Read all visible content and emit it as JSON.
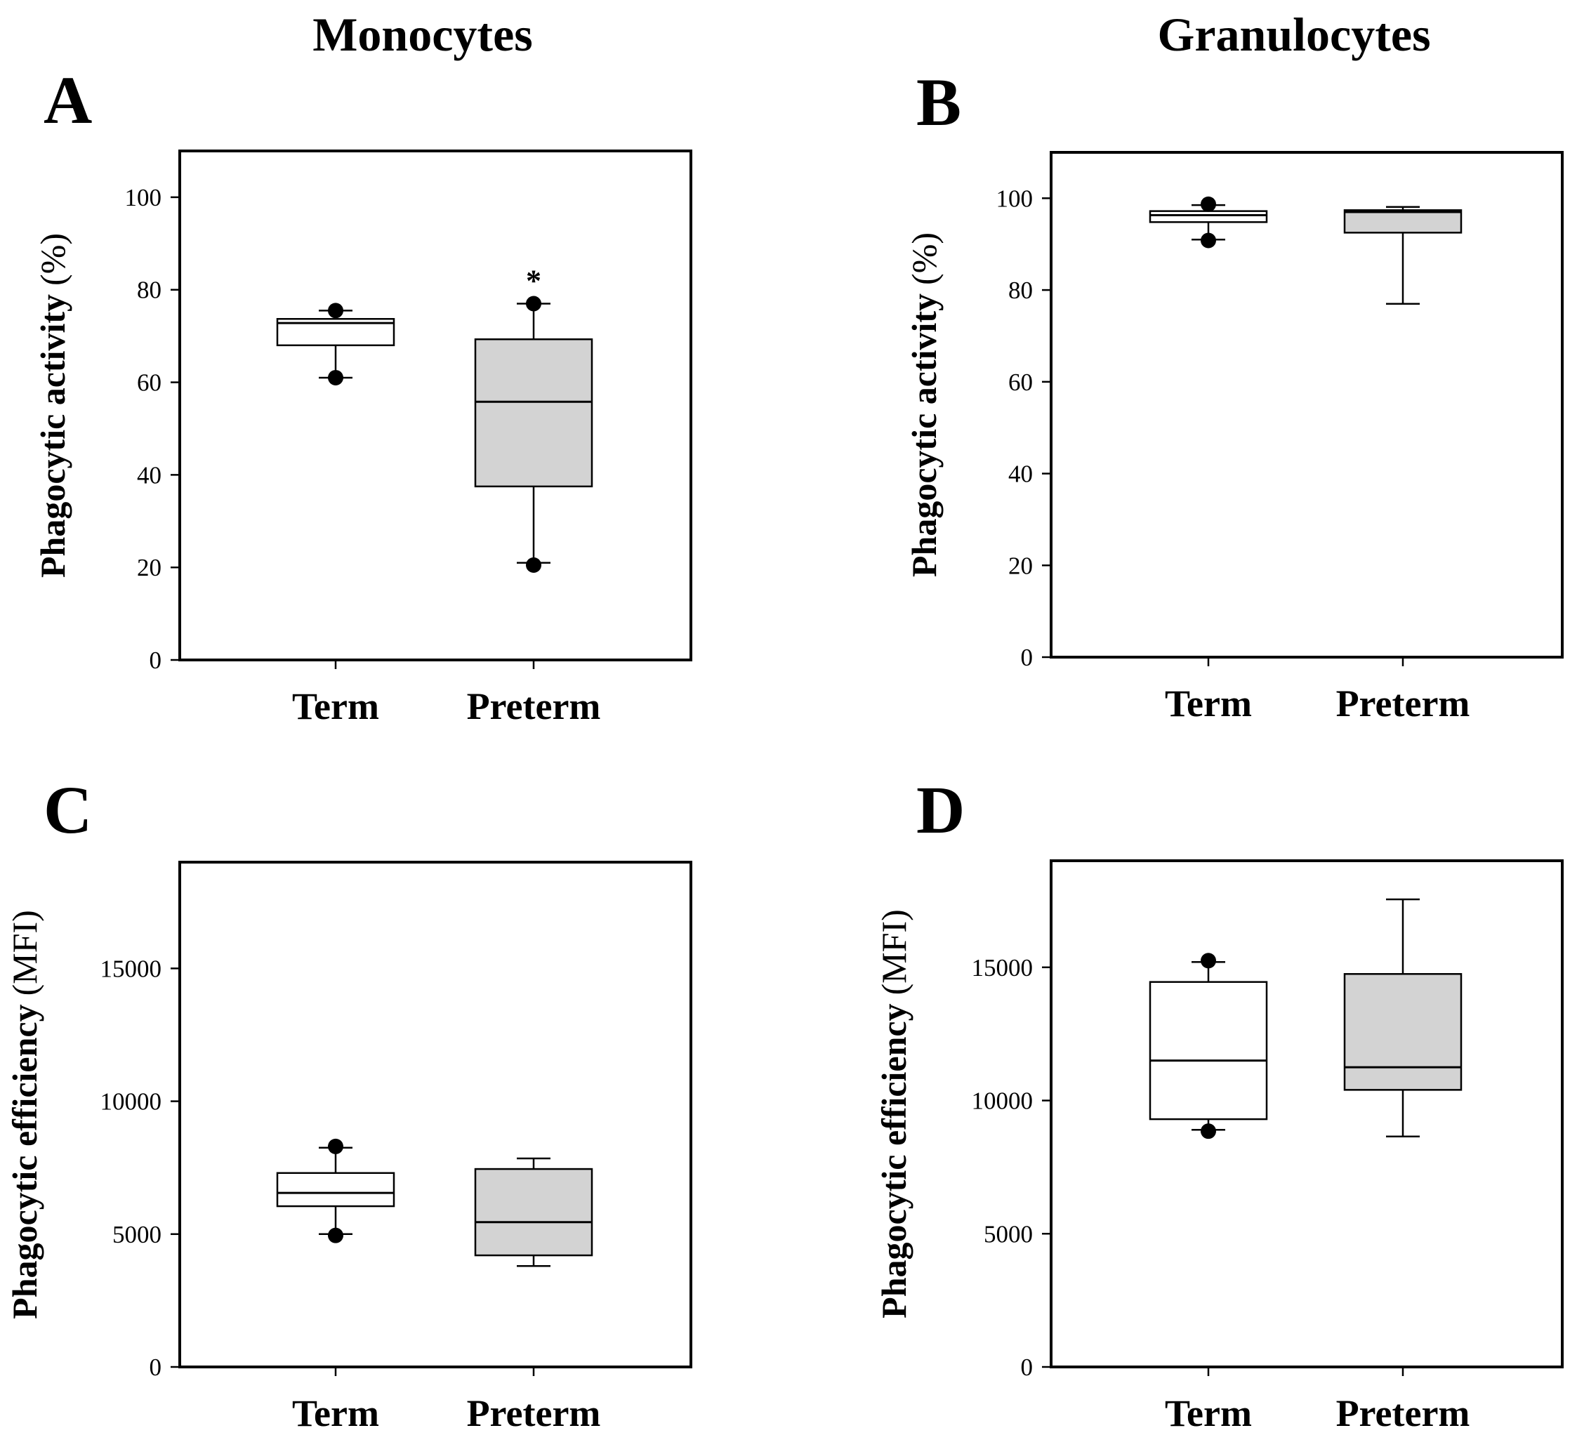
{
  "column_titles": {
    "left": "Monocytes",
    "right": "Granulocytes"
  },
  "colors": {
    "term_fill": "#ffffff",
    "preterm_fill": "#d3d3d3",
    "line": "#000000"
  },
  "chart_data": [
    {
      "panel": "A",
      "type": "box",
      "ylabel_main": "Phagocytic activity",
      "ylabel_unit": "(%)",
      "ylim": [
        0,
        110
      ],
      "yticks": [
        0,
        20,
        40,
        60,
        80,
        100
      ],
      "tick_labels": [
        "0",
        "20",
        "40",
        "60",
        "80",
        "100"
      ],
      "categories": [
        "Term",
        "Preterm"
      ],
      "series": [
        {
          "name": "Term",
          "whisker_low": 61,
          "q1": 68,
          "median": 72.8,
          "q3": 73.7,
          "whisker_high": 75.5,
          "outliers": [
            61,
            75.5
          ]
        },
        {
          "name": "Preterm",
          "whisker_low": 21,
          "q1": 37.5,
          "median": 55.8,
          "q3": 69.3,
          "whisker_high": 77,
          "outliers": [
            20.5,
            77
          ],
          "annotation": "*"
        }
      ]
    },
    {
      "panel": "B",
      "type": "box",
      "ylabel_main": "Phagocytic activity",
      "ylabel_unit": "(%)",
      "ylim": [
        0,
        110
      ],
      "yticks": [
        0,
        20,
        40,
        60,
        80,
        100
      ],
      "tick_labels": [
        "0",
        "20",
        "40",
        "60",
        "80",
        "100"
      ],
      "categories": [
        "Term",
        "Preterm"
      ],
      "series": [
        {
          "name": "Term",
          "whisker_low": 91,
          "q1": 94.8,
          "median": 96.3,
          "q3": 97.2,
          "whisker_high": 98.5,
          "outliers": [
            90.8,
            98.7
          ]
        },
        {
          "name": "Preterm",
          "whisker_low": 77,
          "q1": 92.5,
          "median": 97,
          "q3": 97.4,
          "whisker_high": 98.1,
          "outliers": []
        }
      ]
    },
    {
      "panel": "C",
      "type": "box",
      "ylabel_main": "Phagocytic efficiency",
      "ylabel_unit": "(MFI)",
      "ylim": [
        0,
        19000
      ],
      "yticks": [
        0,
        5000,
        10000,
        15000
      ],
      "tick_labels": [
        "0",
        "5000",
        "10000",
        "15000"
      ],
      "categories": [
        "Term",
        "Preterm"
      ],
      "series": [
        {
          "name": "Term",
          "whisker_low": 5000,
          "q1": 6050,
          "median": 6550,
          "q3": 7300,
          "whisker_high": 8250,
          "outliers": [
            4950,
            8300
          ]
        },
        {
          "name": "Preterm",
          "whisker_low": 3800,
          "q1": 4200,
          "median": 5450,
          "q3": 7450,
          "whisker_high": 7850,
          "outliers": []
        }
      ]
    },
    {
      "panel": "D",
      "type": "box",
      "ylabel_main": "Phagocytic efficiency",
      "ylabel_unit": "(MFI)",
      "ylim": [
        0,
        19000
      ],
      "yticks": [
        0,
        5000,
        10000,
        15000
      ],
      "tick_labels": [
        "0",
        "5000",
        "10000",
        "15000"
      ],
      "categories": [
        "Term",
        "Preterm"
      ],
      "series": [
        {
          "name": "Term",
          "whisker_low": 8900,
          "q1": 9300,
          "median": 11500,
          "q3": 14450,
          "whisker_high": 15200,
          "outliers": [
            8850,
            15250
          ]
        },
        {
          "name": "Preterm",
          "whisker_low": 8650,
          "q1": 10400,
          "median": 11250,
          "q3": 14750,
          "whisker_high": 17550,
          "outliers": []
        }
      ]
    }
  ]
}
